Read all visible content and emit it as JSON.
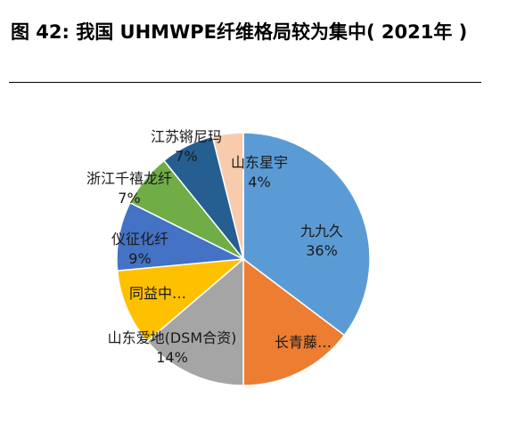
{
  "title": "图 42: 我国 UHMWPE纤维格局较为集中( 2021年 )",
  "chart_data": {
    "type": "pie",
    "start_angle_deg": 0,
    "direction": "clockwise",
    "slices": [
      {
        "label": "九九久",
        "value": 36,
        "pct_text": "36%",
        "color": "#5b9bd5"
      },
      {
        "label": "长青藤…",
        "value": 15,
        "pct_text": "",
        "color": "#ed7d31"
      },
      {
        "label": "山东爱地(DSM合资)",
        "value": 14,
        "pct_text": "14%",
        "color": "#a5a5a5"
      },
      {
        "label": "同益中…",
        "value": 10,
        "pct_text": "",
        "color": "#ffc000"
      },
      {
        "label": "仪征化纤",
        "value": 9,
        "pct_text": "9%",
        "color": "#4472c4"
      },
      {
        "label": "浙江千禧龙纤",
        "value": 7,
        "pct_text": "7%",
        "color": "#70ad47"
      },
      {
        "label": "江苏锵尼玛",
        "value": 7,
        "pct_text": "7%",
        "color": "#255e91"
      },
      {
        "label": "山东星宇",
        "value": 4,
        "pct_text": "4%",
        "color": "#f8cbad"
      }
    ]
  }
}
